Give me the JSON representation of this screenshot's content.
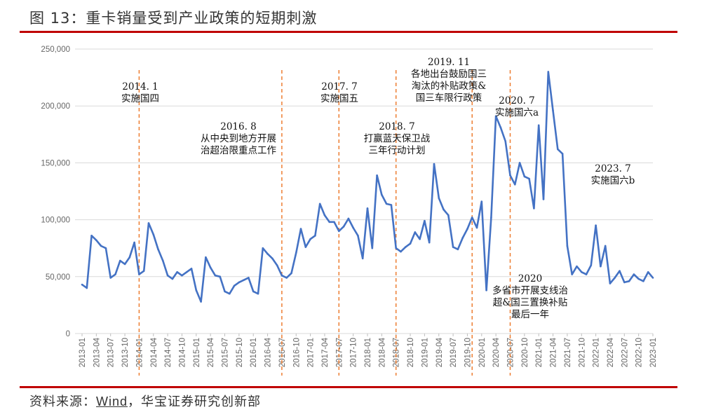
{
  "header": {
    "title": "图 13：重卡销量受到产业政策的短期刺激"
  },
  "footer": {
    "source_label": "资料来源：",
    "source_name": "Wind",
    "source_rest": "，华宝证券研究创新部"
  },
  "colors": {
    "line": "#4472c4",
    "marker_line": "#ed7d31",
    "rule": "#c00000",
    "grid": "#d9d9d9"
  },
  "chart_data": {
    "type": "line",
    "title": "",
    "xlabel": "",
    "ylabel": "",
    "ylim": [
      0,
      250000
    ],
    "yticks": [
      0,
      50000,
      100000,
      150000,
      200000,
      250000
    ],
    "ytick_labels": [
      "0",
      "50,000",
      "100,000",
      "150,000",
      "200,000",
      "250,000"
    ],
    "x_tick_labels": [
      "2013-01",
      "2013-04",
      "2013-07",
      "2013-10",
      "2014-01",
      "2014-04",
      "2014-07",
      "2014-10",
      "2015-01",
      "2015-04",
      "2015-07",
      "2015-10",
      "2016-01",
      "2016-04",
      "2016-07",
      "2016-10",
      "2017-01",
      "2017-04",
      "2017-07",
      "2017-10",
      "2018-01",
      "2018-04",
      "2018-07",
      "2018-10",
      "2019-01",
      "2019-04",
      "2019-07",
      "2019-10",
      "2020-01",
      "2020-04",
      "2020-07",
      "2020-10",
      "2021-01",
      "2021-04",
      "2021-07",
      "2021-10",
      "2022-01",
      "2022-04",
      "2022-07",
      "2022-10",
      "2023-01"
    ],
    "x_start": "2013-01",
    "series": [
      {
        "name": "重卡销量",
        "values": [
          43000,
          40000,
          86000,
          82000,
          77000,
          75000,
          49000,
          52000,
          64000,
          61000,
          67000,
          80000,
          52000,
          55000,
          97000,
          87000,
          74000,
          64000,
          51000,
          48000,
          54000,
          51000,
          54000,
          57000,
          38000,
          28000,
          67000,
          58000,
          51000,
          50000,
          37000,
          35000,
          42000,
          45000,
          47000,
          49000,
          37000,
          35000,
          75000,
          70000,
          66000,
          60000,
          51000,
          49000,
          53000,
          71000,
          92000,
          76000,
          83000,
          86000,
          114000,
          104000,
          98000,
          98000,
          90000,
          94000,
          101000,
          93000,
          86000,
          66000,
          110000,
          75000,
          139000,
          122000,
          114000,
          113000,
          75000,
          72000,
          76000,
          79000,
          89000,
          83000,
          99000,
          80000,
          149000,
          119000,
          109000,
          104000,
          76000,
          74000,
          84000,
          92000,
          102000,
          93000,
          116000,
          38000,
          102000,
          191000,
          181000,
          169000,
          139000,
          131000,
          150000,
          138000,
          136000,
          110000,
          183000,
          118000,
          230000,
          196000,
          162000,
          158000,
          77000,
          52000,
          59000,
          54000,
          52000,
          60000,
          95000,
          59000,
          77000,
          44000,
          49000,
          55000,
          45000,
          46000,
          52000,
          48000,
          46000,
          54000,
          49000
        ]
      }
    ],
    "annotations": [
      {
        "x_index": 12,
        "lines": [
          "2014. 1",
          "实施国四"
        ]
      },
      {
        "x_index": 42,
        "lines": [
          "2016. 8",
          "从中央到地方开展",
          "治超治限重点工作"
        ]
      },
      {
        "x_index": 54,
        "lines": [
          "2017. 7",
          "实施国五"
        ]
      },
      {
        "x_index": 66,
        "lines": [
          "2018. 7",
          "打赢蓝天保卫战",
          "三年行动计划"
        ]
      },
      {
        "x_index": 82,
        "lines": [
          "2019. 11",
          "各地出台鼓励国三",
          "淘汰的补贴政策&",
          "国三车限行政策"
        ]
      },
      {
        "x_index": 90,
        "lines": [
          "2020. 7",
          "实施国六a"
        ]
      },
      {
        "x_index": 90,
        "lines": [
          "2020",
          "多省市开展支线治",
          "超&国三置换补贴",
          "最后一年"
        ]
      },
      {
        "x_index": -1,
        "lines": [
          "2023. 7",
          "实施国六b"
        ]
      }
    ]
  }
}
